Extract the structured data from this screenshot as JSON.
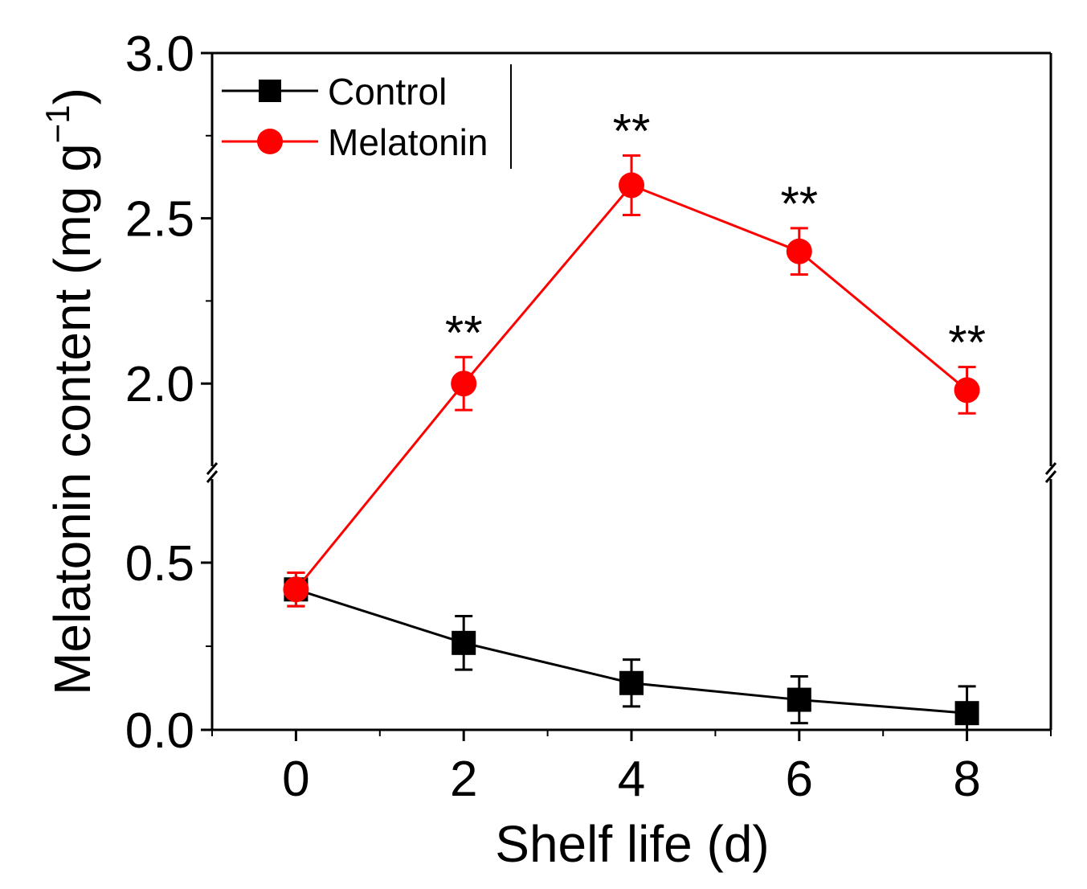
{
  "chart_data": {
    "type": "line",
    "xlabel": "Shelf life (d)",
    "ylabel_main": "Melatonin content (mg g",
    "ylabel_sup": "−1",
    "ylabel_close": ")",
    "x": [
      0,
      2,
      4,
      6,
      8
    ],
    "x_ticks": [
      "0",
      "2",
      "4",
      "6",
      "8"
    ],
    "xlim": [
      -1,
      9
    ],
    "ylim": [
      0,
      3.0
    ],
    "axis_break": [
      0.75,
      1.75
    ],
    "y_ticks": [
      "0.0",
      "0.5",
      "2.0",
      "2.5",
      "3.0"
    ],
    "y_tick_values": [
      0.0,
      0.5,
      2.0,
      2.5,
      3.0
    ],
    "series": [
      {
        "name": "Control",
        "color": "#000000",
        "marker": "square",
        "values": [
          0.42,
          0.26,
          0.14,
          0.09,
          0.05
        ],
        "errors": [
          0.05,
          0.08,
          0.07,
          0.07,
          0.08
        ]
      },
      {
        "name": "Melatonin",
        "color": "#ff0000",
        "marker": "circle",
        "values": [
          0.42,
          2.0,
          2.6,
          2.4,
          1.98
        ],
        "errors": [
          0.05,
          0.08,
          0.09,
          0.07,
          0.07
        ]
      }
    ],
    "annotations": [
      {
        "text": "**",
        "x": 2
      },
      {
        "text": "**",
        "x": 4
      },
      {
        "text": "**",
        "x": 6
      },
      {
        "text": "**",
        "x": 8
      }
    ],
    "legend_position": "top-left"
  }
}
